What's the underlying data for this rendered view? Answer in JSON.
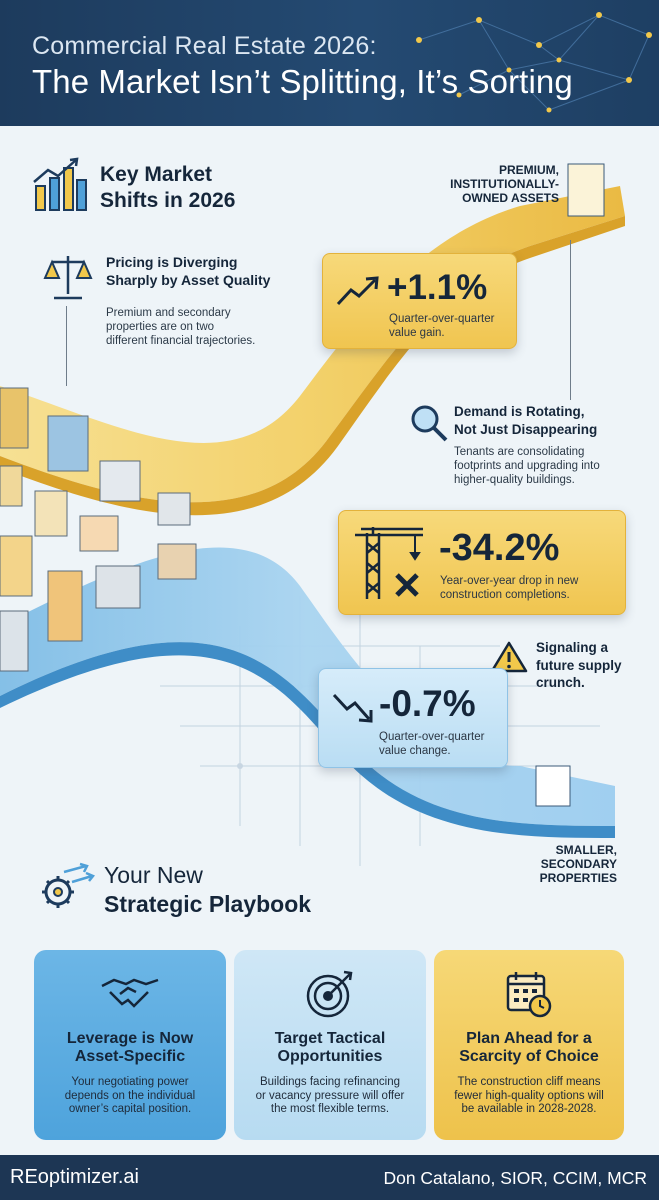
{
  "header": {
    "subtitle": "Commercial Real Estate 2026:",
    "title": "The Market Isn’t Splitting, It’s Sorting"
  },
  "key_shifts": {
    "title_line1": "Key Market",
    "title_line2": "Shifts in 2026",
    "icon": "bar-chart-trend-icon"
  },
  "labels": {
    "premium_line1": "PREMIUM,",
    "premium_line2": "INSTITUTIONALLY-",
    "premium_line3": "OWNED ASSETS",
    "secondary_line1": "SMALLER,",
    "secondary_line2": "SECONDARY",
    "secondary_line3": "PROPERTIES"
  },
  "points": {
    "pricing": {
      "title_line1": "Pricing is Diverging",
      "title_line2": "Sharply by Asset Quality",
      "desc_line1": "Premium and secondary",
      "desc_line2": "properties are on two",
      "desc_line3": "different financial trajectories.",
      "icon": "scales-icon"
    },
    "demand": {
      "title_line1": "Demand is Rotating,",
      "title_line2": "Not Just Disappearing",
      "desc_line1": "Tenants are consolidating",
      "desc_line2": "footprints and upgrading into",
      "desc_line3": "higher-quality buildings.",
      "icon": "magnifier-icon"
    },
    "supply": {
      "line1": "Signaling a",
      "line2": "future supply",
      "line3": "crunch.",
      "icon": "warning-icon"
    }
  },
  "stats": {
    "premium_gain": {
      "value": "+1.1%",
      "desc_line1": "Quarter-over-quarter",
      "desc_line2": "value gain.",
      "icon": "trend-up-arrow-icon"
    },
    "construction": {
      "value": "-34.2%",
      "desc_line1": "Year-over-year drop in new",
      "desc_line2": "construction completions.",
      "icon": "crane-icon"
    },
    "secondary_change": {
      "value": "-0.7%",
      "desc_line1": "Quarter-over-quarter",
      "desc_line2": "value change.",
      "icon": "trend-down-arrow-icon"
    }
  },
  "playbook": {
    "title_line1": "Your New",
    "title_line2": "Strategic Playbook",
    "icon": "gear-arrows-icon",
    "cards": [
      {
        "title_line1": "Leverage is Now",
        "title_line2": "Asset-Specific",
        "desc_line1": "Your negotiating power",
        "desc_line2": "depends on the individual",
        "desc_line3": "owner’s capital position.",
        "icon": "handshake-icon"
      },
      {
        "title_line1": "Target Tactical",
        "title_line2": "Opportunities",
        "desc_line1": "Buildings facing refinancing",
        "desc_line2": "or vacancy pressure will offer",
        "desc_line3": "the most flexible terms.",
        "icon": "target-icon"
      },
      {
        "title_line1": "Plan Ahead for a",
        "title_line2": "Scarcity of Choice",
        "desc_line1": "The construction cliff means",
        "desc_line2": "fewer high-quality options will",
        "desc_line3": "be available in 2028-2028.",
        "icon": "calendar-clock-icon"
      }
    ]
  },
  "footer": {
    "brand": "REoptimizer.ai",
    "author": "Don Catalano, SIOR, CCIM, MCR"
  },
  "colors": {
    "header_bg": "#1d3b5d",
    "gold": "#f0c550",
    "blue": "#b9ddf3",
    "footer_bg": "#1d3654"
  }
}
